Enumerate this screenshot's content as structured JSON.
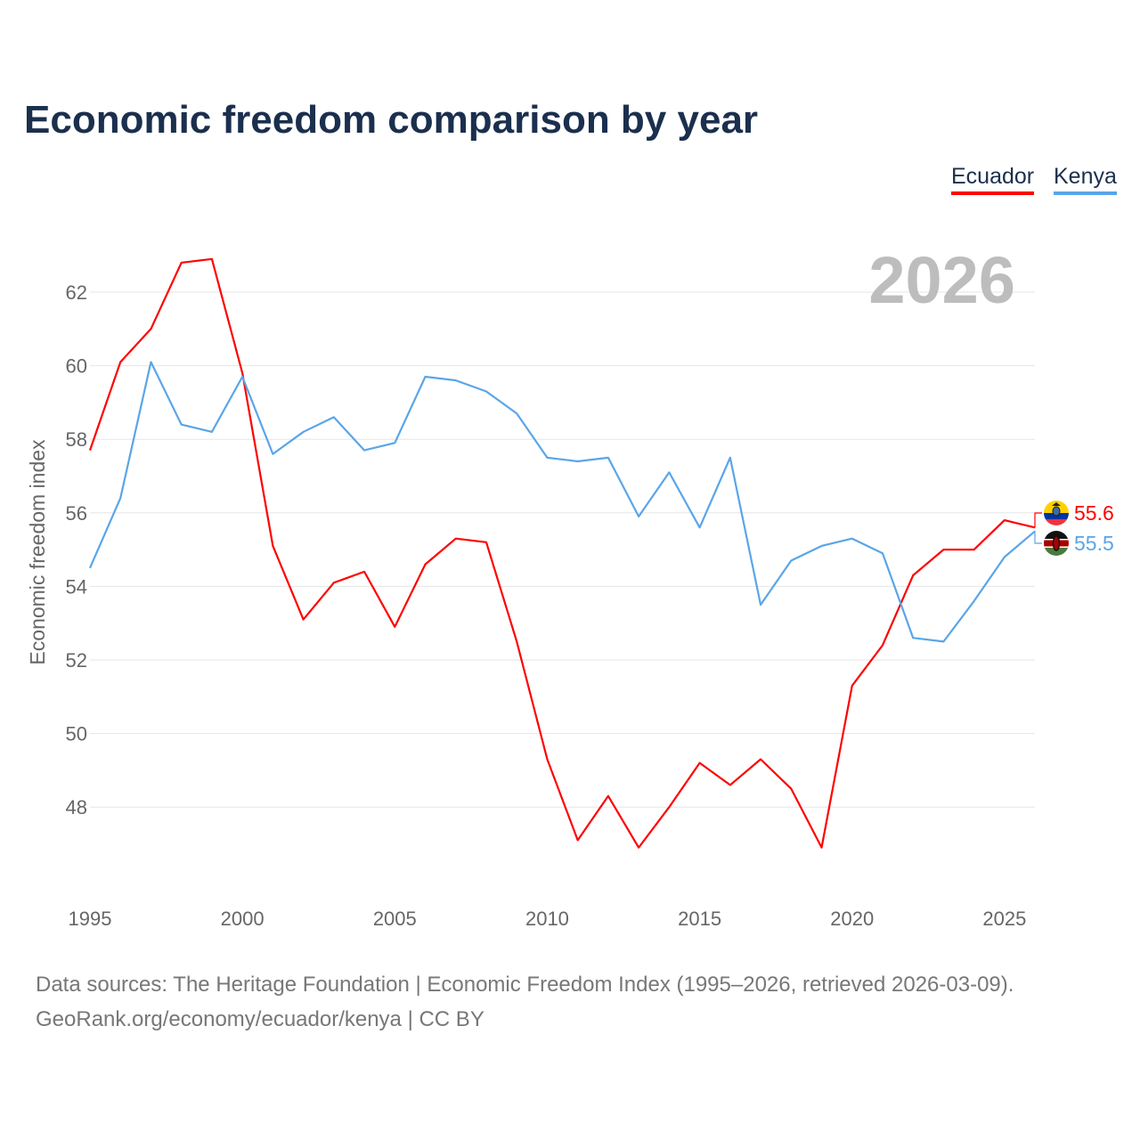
{
  "chart_data": {
    "type": "line",
    "title": "Economic freedom comparison by year",
    "xlabel": "",
    "ylabel": "Economic freedom index",
    "year_watermark": "2026",
    "x": [
      1995,
      1996,
      1997,
      1998,
      1999,
      2000,
      2001,
      2002,
      2003,
      2004,
      2005,
      2006,
      2007,
      2008,
      2009,
      2010,
      2011,
      2012,
      2013,
      2014,
      2015,
      2016,
      2017,
      2018,
      2019,
      2020,
      2021,
      2022,
      2023,
      2024,
      2025,
      2026
    ],
    "series": [
      {
        "name": "Ecuador",
        "color": "#ff0000",
        "end_label": "55.6",
        "values": [
          57.7,
          60.1,
          61.0,
          62.8,
          62.9,
          59.8,
          55.1,
          53.1,
          54.1,
          54.4,
          52.9,
          54.6,
          55.3,
          55.2,
          52.5,
          49.3,
          47.1,
          48.3,
          46.9,
          48.0,
          49.2,
          48.6,
          49.3,
          48.5,
          46.9,
          51.3,
          52.4,
          54.3,
          55.0,
          55.0,
          55.8,
          55.6
        ]
      },
      {
        "name": "Kenya",
        "color": "#5aa5e8",
        "end_label": "55.5",
        "values": [
          54.5,
          56.4,
          60.1,
          58.4,
          58.2,
          59.7,
          57.6,
          58.2,
          58.6,
          57.7,
          57.9,
          59.7,
          59.6,
          59.3,
          58.7,
          57.5,
          57.4,
          57.5,
          55.9,
          57.1,
          55.6,
          57.5,
          53.5,
          54.7,
          55.1,
          55.3,
          54.9,
          52.6,
          52.5,
          53.6,
          54.8,
          55.5
        ]
      }
    ],
    "xticks": [
      "1995",
      "2000",
      "2005",
      "2010",
      "2015",
      "2020",
      "2025"
    ],
    "yticks": [
      "48",
      "50",
      "52",
      "54",
      "56",
      "58",
      "60",
      "62"
    ],
    "xlim": [
      1995,
      2026
    ],
    "ylim": [
      45.6,
      63.6
    ],
    "grid": true,
    "legend_position": "top-right"
  },
  "source": {
    "line1": "Data sources: The Heritage Foundation | Economic Freedom Index (1995–2026, retrieved 2026-03-09).",
    "line2": "GeoRank.org/economy/ecuador/kenya | CC BY"
  }
}
